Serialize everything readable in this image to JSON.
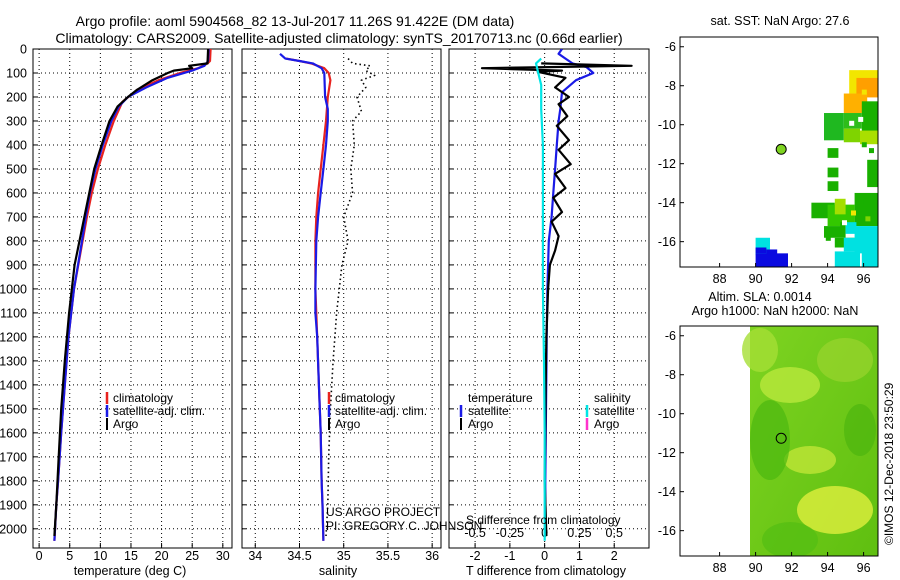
{
  "titles": {
    "line1": "Argo profile: aoml 5904568_82 13-Jul-2017 11.26S 91.422E (DM data)",
    "line2": "Climatology: CARS2009. Satellite-adjusted climatology: synTS_20170713.nc (0.66d earlier)"
  },
  "credit": {
    "line1": "US ARGO PROJECT",
    "line2": "PI: GREGORY C. JOHNSON",
    "imos": "©IMOS 12-Dec-2018 23:50:29"
  },
  "colors": {
    "climatology": "#e8231f",
    "satellite": "#1a1ae6",
    "argo": "#000000",
    "sal_sat": "#00e5e5",
    "sal_argo": "#ff33cc"
  },
  "chart_data": [
    {
      "type": "line",
      "name": "temperature",
      "xlabel": "temperature (deg C)",
      "xlim": [
        -1,
        31.5
      ],
      "xticks": [
        0,
        5,
        10,
        15,
        20,
        25,
        30
      ],
      "xtick_labels": [
        "0",
        "5",
        "10",
        "15",
        "20",
        "25",
        "30"
      ],
      "ylim": [
        2080,
        0
      ],
      "yticks": [
        0,
        100,
        200,
        300,
        400,
        500,
        600,
        700,
        800,
        900,
        1000,
        1100,
        1200,
        1300,
        1400,
        1500,
        1600,
        1700,
        1800,
        1900,
        2000
      ],
      "ytick_labels": [
        "0",
        "100",
        "200",
        "300",
        "400",
        "500",
        "600",
        "700",
        "800",
        "900",
        "1000",
        "1100",
        "1200",
        "1300",
        "1400",
        "1500",
        "1600",
        "1700",
        "1800",
        "1900",
        "2000"
      ],
      "legend": [
        "climatology",
        "satellite-adj. clim.",
        "Argo"
      ],
      "series": [
        {
          "name": "climatology",
          "color": "#e8231f",
          "x": [
            28.0,
            27.9,
            27.5,
            26.0,
            23.0,
            19.5,
            16.0,
            13.6,
            12.2,
            10.8,
            9.6,
            8.6,
            7.8,
            7.1,
            5.7,
            4.8,
            4.2,
            3.6,
            3.1,
            2.8,
            2.5
          ],
          "y": [
            0,
            50,
            60,
            80,
            100,
            130,
            170,
            220,
            300,
            400,
            500,
            600,
            700,
            800,
            1000,
            1200,
            1400,
            1600,
            1800,
            1900,
            2050
          ]
        },
        {
          "name": "satellite-adj. clim.",
          "color": "#1a1ae6",
          "x": [
            27.7,
            27.6,
            27.0,
            25.0,
            21.0,
            17.5,
            14.5,
            13.0,
            11.8,
            10.4,
            9.2,
            8.3,
            7.6,
            7.0,
            5.7,
            4.8,
            4.2,
            3.6,
            3.1,
            2.8,
            2.5
          ],
          "y": [
            0,
            50,
            70,
            90,
            120,
            160,
            200,
            240,
            300,
            400,
            500,
            600,
            700,
            800,
            1000,
            1200,
            1400,
            1600,
            1800,
            1900,
            2050
          ]
        },
        {
          "name": "Argo",
          "color": "#000000",
          "x": [
            27.6,
            27.5,
            24.5,
            25.0,
            22.0,
            21.0,
            18.5,
            16.0,
            14.5,
            12.8,
            11.5,
            10.2,
            9.0,
            8.2,
            7.4,
            5.8,
            4.9,
            4.2,
            3.6,
            3.2,
            2.8,
            2.5
          ],
          "y": [
            0,
            60,
            70,
            80,
            90,
            100,
            130,
            170,
            200,
            240,
            300,
            400,
            500,
            600,
            700,
            900,
            1100,
            1300,
            1500,
            1700,
            1900,
            2030
          ]
        }
      ]
    },
    {
      "type": "line",
      "name": "salinity",
      "xlabel": "salinity",
      "xlim": [
        33.85,
        36.1
      ],
      "xticks": [
        34,
        34.5,
        35,
        35.5,
        36
      ],
      "xtick_labels": [
        "34",
        "34.5",
        "35",
        "35.5",
        "36"
      ],
      "ylim": [
        2080,
        0
      ],
      "legend": [
        "climatology",
        "satellite-adj. clim.",
        "Argo"
      ],
      "series": [
        {
          "name": "climatology",
          "color": "#e8231f",
          "x": [
            34.35,
            34.5,
            34.63,
            34.78,
            34.83,
            34.85,
            34.82,
            34.8,
            34.77,
            34.74,
            34.71,
            34.69,
            34.68,
            34.68,
            34.7,
            34.72,
            34.74,
            34.75,
            34.76,
            34.77
          ],
          "y": [
            40,
            50,
            60,
            80,
            100,
            130,
            200,
            300,
            400,
            500,
            600,
            700,
            800,
            1000,
            1200,
            1400,
            1600,
            1800,
            1900,
            2050
          ]
        },
        {
          "name": "satellite-adj. clim.",
          "color": "#1a1ae6",
          "x": [
            34.28,
            34.34,
            34.5,
            34.65,
            34.75,
            34.78,
            34.79,
            34.82,
            34.82,
            34.8,
            34.77,
            34.74,
            34.71,
            34.69,
            34.68,
            34.68,
            34.7,
            34.72,
            34.74,
            34.75,
            34.76,
            34.77
          ],
          "y": [
            20,
            40,
            50,
            60,
            80,
            100,
            200,
            250,
            300,
            400,
            500,
            600,
            700,
            800,
            1000,
            1100,
            1200,
            1400,
            1600,
            1800,
            1900,
            2050
          ]
        },
        {
          "name": "Argo",
          "color": "#000000",
          "dotted": true,
          "x": [
            35.05,
            35.1,
            35.3,
            35.25,
            35.35,
            35.2,
            35.25,
            35.15,
            35.2,
            35.1,
            35.12,
            35.08,
            35.1,
            35.0,
            35.05,
            34.98,
            34.95,
            34.92,
            34.9,
            34.88,
            34.85,
            34.83,
            34.82,
            34.8
          ],
          "y": [
            40,
            60,
            70,
            90,
            110,
            130,
            160,
            200,
            260,
            300,
            400,
            500,
            600,
            700,
            800,
            900,
            1000,
            1100,
            1200,
            1300,
            1500,
            1700,
            1900,
            2030
          ]
        }
      ]
    },
    {
      "type": "line",
      "name": "difference",
      "xlabel": "T difference from climatology",
      "xlabel_top": "S difference from climatology",
      "xlim": [
        -2.75,
        3.0
      ],
      "xticks": [
        -2,
        -1,
        0,
        1,
        2
      ],
      "xtick_labels": [
        "-2",
        "-1",
        "0",
        "1",
        "2"
      ],
      "sticks": [
        -0.5,
        -0.25,
        0,
        0.25,
        0.5
      ],
      "stick_labels": [
        "-0.5",
        "-0.25",
        "0",
        "0.25",
        "0.5"
      ],
      "ylim": [
        2080,
        0
      ],
      "legend_left_title": "temperature",
      "legend_right_title": "salinity",
      "legend_left": [
        "satellite",
        "Argo"
      ],
      "legend_right": [
        "satellite",
        "Argo"
      ],
      "series": [
        {
          "name": "T satellite",
          "color": "#1a1ae6",
          "x": [
            0.5,
            0.4,
            0.6,
            0.8,
            1.2,
            1.4,
            0.9,
            0.5,
            0.45,
            0.4,
            0.35,
            0.3,
            0.25,
            0.2,
            0.12,
            0.08,
            0.06,
            0.04,
            0.02,
            0.02
          ],
          "y": [
            0,
            20,
            40,
            60,
            75,
            100,
            130,
            180,
            250,
            300,
            400,
            500,
            600,
            700,
            800,
            1000,
            1200,
            1500,
            1800,
            2000
          ]
        },
        {
          "name": "T Argo",
          "color": "#000000",
          "x": [
            -0.1,
            2.5,
            -1.8,
            0.5,
            -0.2,
            0.6,
            0.3,
            0.7,
            0.4,
            0.65,
            0.35,
            0.7,
            0.4,
            0.75,
            0.3,
            0.6,
            0.25,
            0.5,
            0.2,
            0.4,
            0.3,
            0.15,
            0.1,
            0.05,
            0.03,
            0.02,
            0.0,
            0.05
          ],
          "y": [
            60,
            70,
            80,
            90,
            95,
            120,
            160,
            200,
            230,
            280,
            320,
            380,
            420,
            480,
            520,
            580,
            620,
            680,
            720,
            780,
            840,
            900,
            1000,
            1200,
            1400,
            1600,
            1800,
            2030
          ]
        },
        {
          "name": "S satellite",
          "color": "#00e5e5",
          "x": [
            -0.1,
            -0.25,
            -0.2,
            -0.1,
            -0.1,
            -0.05,
            -0.05,
            -0.05,
            -0.05,
            -0.02,
            0.0,
            0.0
          ],
          "y": [
            40,
            60,
            90,
            150,
            250,
            400,
            600,
            800,
            1000,
            1300,
            1600,
            2050
          ]
        }
      ]
    },
    {
      "type": "heatmap",
      "name": "sat-sst",
      "title": "sat. SST: NaN Argo: 27.6",
      "xlim": [
        85.8,
        96.8
      ],
      "ylim": [
        -17.3,
        -5.5
      ],
      "xticks": [
        88,
        90,
        92,
        94,
        96
      ],
      "xtick_labels": [
        "88",
        "90",
        "92",
        "94",
        "96"
      ],
      "yticks": [
        -6,
        -8,
        -10,
        -12,
        -14,
        -16
      ],
      "ytick_labels": [
        "-6",
        "-8",
        "-10",
        "-12",
        "-14",
        "-16"
      ],
      "argo_position": [
        91.422,
        -11.26
      ]
    },
    {
      "type": "heatmap",
      "name": "altimetry",
      "title": "Altim. SLA: 0.0014",
      "subtitle": "Argo h1000: NaN h2000: NaN",
      "xlim": [
        85.8,
        96.8
      ],
      "ylim": [
        -17.3,
        -5.5
      ],
      "xticks": [
        88,
        90,
        92,
        94,
        96
      ],
      "xtick_labels": [
        "88",
        "90",
        "92",
        "94",
        "96"
      ],
      "yticks": [
        -6,
        -8,
        -10,
        -12,
        -14,
        -16
      ],
      "ytick_labels": [
        "-6",
        "-8",
        "-10",
        "-12",
        "-14",
        "-16"
      ],
      "argo_position": [
        91.422,
        -11.26
      ]
    }
  ]
}
